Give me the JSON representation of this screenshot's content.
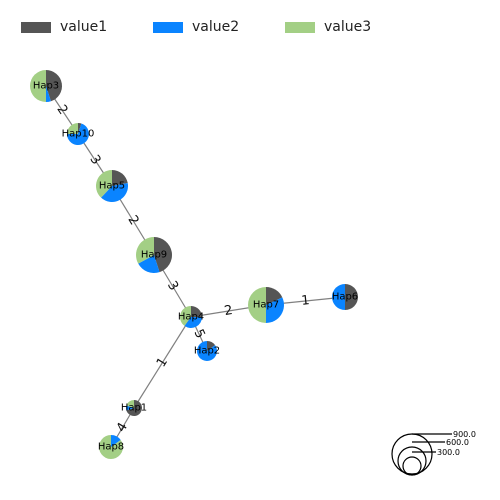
{
  "legend": {
    "items": [
      {
        "label": "value1",
        "color": "#555555"
      },
      {
        "label": "value2",
        "color": "#0a84ff"
      },
      {
        "label": "value3",
        "color": "#a3cf85"
      }
    ]
  },
  "network": {
    "nodes": [
      {
        "id": "Hap3",
        "label": "Hap3",
        "values": [
          0.45,
          0.05,
          0.5
        ]
      },
      {
        "id": "Hap10",
        "label": "Hap10",
        "values": [
          0.05,
          0.7,
          0.25
        ]
      },
      {
        "id": "Hap5",
        "label": "Hap5",
        "values": [
          0.22,
          0.4,
          0.38
        ]
      },
      {
        "id": "Hap9",
        "label": "Hap9",
        "values": [
          0.45,
          0.22,
          0.33
        ]
      },
      {
        "id": "Hap4",
        "label": "Hap4",
        "values": [
          0.25,
          0.35,
          0.4
        ]
      },
      {
        "id": "Hap7",
        "label": "Hap7",
        "values": [
          0.18,
          0.32,
          0.5
        ]
      },
      {
        "id": "Hap6",
        "label": "Hap6",
        "values": [
          0.5,
          0.5,
          0.0
        ]
      },
      {
        "id": "Hap2",
        "label": "Hap2",
        "values": [
          0.15,
          0.85,
          0.0
        ]
      },
      {
        "id": "Hap1",
        "label": "Hap1",
        "values": [
          0.7,
          0.1,
          0.2
        ]
      },
      {
        "id": "Hap8",
        "label": "Hap8",
        "values": [
          0.0,
          0.15,
          0.85
        ]
      }
    ],
    "edges": [
      {
        "from": "Hap3",
        "to": "Hap10",
        "weight": "2"
      },
      {
        "from": "Hap10",
        "to": "Hap5",
        "weight": "3"
      },
      {
        "from": "Hap5",
        "to": "Hap9",
        "weight": "2"
      },
      {
        "from": "Hap9",
        "to": "Hap4",
        "weight": "3"
      },
      {
        "from": "Hap4",
        "to": "Hap7",
        "weight": "2"
      },
      {
        "from": "Hap7",
        "to": "Hap6",
        "weight": "1"
      },
      {
        "from": "Hap4",
        "to": "Hap2",
        "weight": "5"
      },
      {
        "from": "Hap4",
        "to": "Hap1",
        "weight": "1"
      },
      {
        "from": "Hap1",
        "to": "Hap8",
        "weight": "4"
      }
    ]
  },
  "size_scale": {
    "labels": [
      "900.0",
      "600.0",
      "300.0"
    ]
  }
}
